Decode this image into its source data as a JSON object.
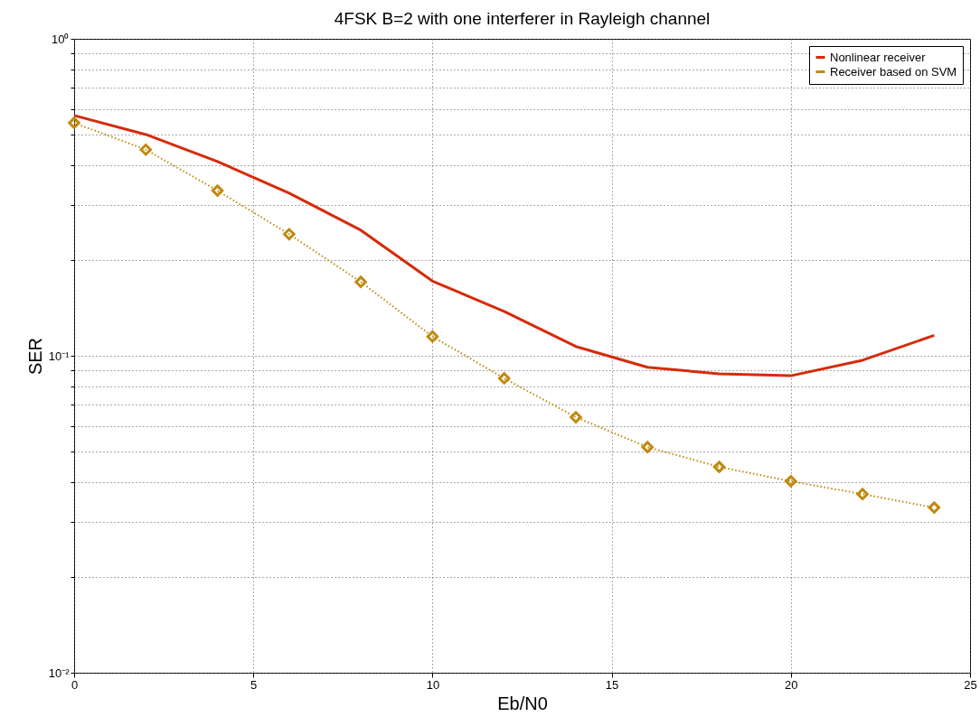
{
  "chart_data": {
    "type": "line",
    "title": "4FSK B=2 with one interferer in Rayleigh channel",
    "xlabel": "Eb/N0",
    "ylabel": "SER",
    "x": [
      0,
      2,
      4,
      6,
      8,
      10,
      12,
      14,
      16,
      18,
      20,
      22,
      24
    ],
    "series": [
      {
        "name": "Nonlinear receiver",
        "color": "#d62b0a",
        "marker": "none",
        "line_style": "solid",
        "values": [
          0.573,
          0.499,
          0.41,
          0.326,
          0.249,
          0.172,
          0.138,
          0.107,
          0.092,
          0.0877,
          0.0865,
          0.0968,
          0.116
        ]
      },
      {
        "name": "Receiver based on SVM",
        "color": "#c08a10",
        "marker": "diamond",
        "line_style": "dotted",
        "values": [
          0.543,
          0.447,
          0.332,
          0.242,
          0.171,
          0.115,
          0.0849,
          0.064,
          0.0515,
          0.0446,
          0.0402,
          0.0366,
          0.0332
        ]
      }
    ],
    "log": "y",
    "xlim": [
      0,
      25
    ],
    "xticks": [
      0,
      5,
      10,
      15,
      20,
      25
    ],
    "ylim": [
      0.01,
      1
    ],
    "yticks": [
      {
        "value": 0.01,
        "label": "10⁻²"
      },
      {
        "value": 0.02,
        "label": null
      },
      {
        "value": 0.03,
        "label": null
      },
      {
        "value": 0.04,
        "label": null
      },
      {
        "value": 0.05,
        "label": null
      },
      {
        "value": 0.06,
        "label": null
      },
      {
        "value": 0.07,
        "label": null
      },
      {
        "value": 0.08,
        "label": null
      },
      {
        "value": 0.09,
        "label": null
      },
      {
        "value": 0.1,
        "label": "10⁻¹"
      },
      {
        "value": 0.2,
        "label": null
      },
      {
        "value": 0.3,
        "label": null
      },
      {
        "value": 0.4,
        "label": null
      },
      {
        "value": 0.5,
        "label": null
      },
      {
        "value": 0.6,
        "label": null
      },
      {
        "value": 0.7,
        "label": null
      },
      {
        "value": 0.8,
        "label": null
      },
      {
        "value": 0.9,
        "label": null
      },
      {
        "value": 1,
        "label": "10⁰"
      }
    ],
    "grid": true,
    "legend": "top right"
  }
}
